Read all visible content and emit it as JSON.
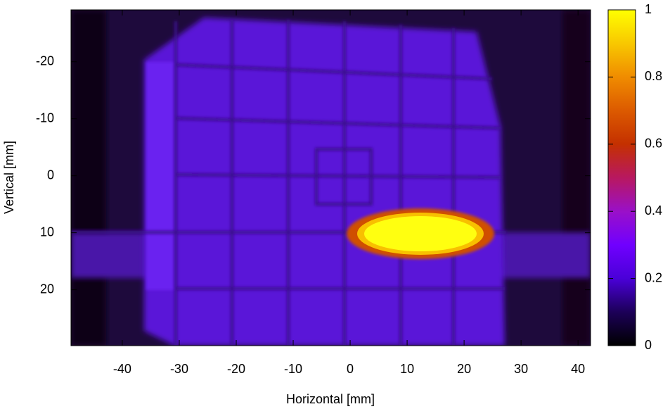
{
  "chart_data": {
    "type": "heatmap",
    "x_label": "Horizontal [mm]",
    "y_label": "Vertical [mm]",
    "xlim": [
      -49,
      42.2
    ],
    "xticks": [
      -40,
      -30,
      -20,
      -10,
      0,
      10,
      20,
      30,
      40
    ],
    "ylim": [
      -29.1,
      29.8
    ],
    "yticks": [
      -20,
      -10,
      0,
      10,
      20
    ],
    "y_inverted": true,
    "colorbar_lim": [
      0,
      1
    ],
    "colorbar_ticks": [
      0,
      0.2,
      0.4,
      0.6,
      0.8,
      1
    ],
    "colormap": [
      "#000000",
      "#1c0058",
      "#4a00d8",
      "#7000ff",
      "#9a10c8",
      "#b81860",
      "#c43000",
      "#dc5a00",
      "#f08c00",
      "#f8c800",
      "#ffff00"
    ]
  }
}
